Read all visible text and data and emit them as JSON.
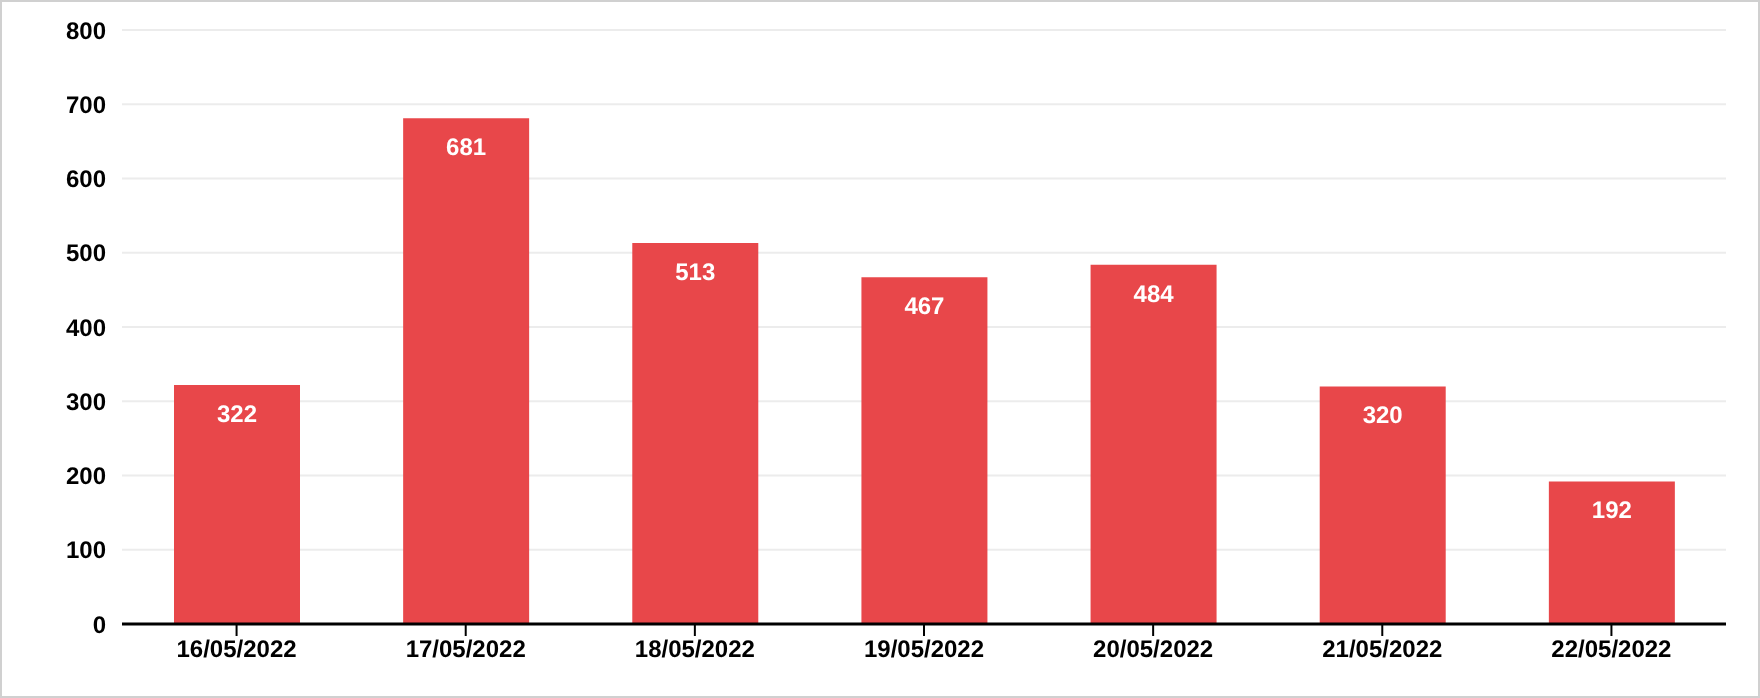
{
  "chart_data": {
    "type": "bar",
    "categories": [
      "16/05/2022",
      "17/05/2022",
      "18/05/2022",
      "19/05/2022",
      "20/05/2022",
      "21/05/2022",
      "22/05/2022"
    ],
    "values": [
      322,
      681,
      513,
      467,
      484,
      320,
      192
    ],
    "color": "#e8474a",
    "ylim": [
      0,
      800
    ],
    "yticks": [
      0,
      100,
      200,
      300,
      400,
      500,
      600,
      700,
      800
    ],
    "grid": "y",
    "data_labels": true
  }
}
